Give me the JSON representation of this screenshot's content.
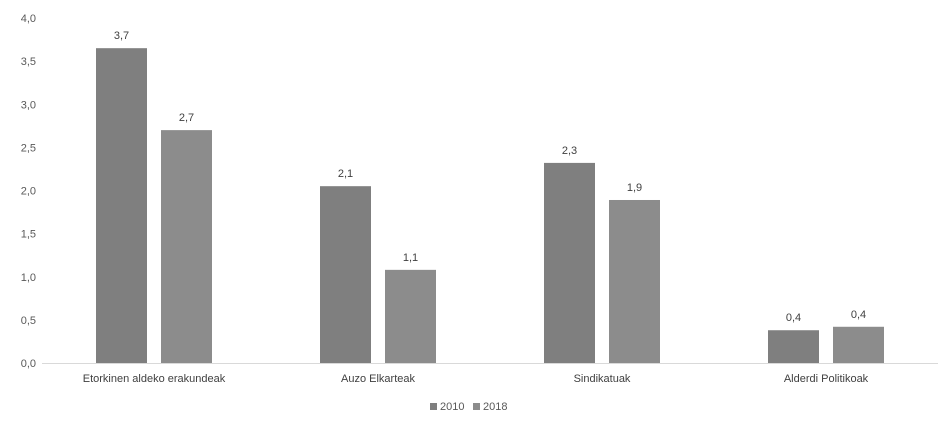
{
  "chart_data": {
    "type": "bar",
    "categories": [
      "Etorkinen aldeko erakundeak",
      "Auzo Elkarteak",
      "Sindikatuak",
      "Alderdi Politikoak"
    ],
    "series": [
      {
        "name": "2010",
        "values": [
          3.65,
          2.05,
          2.32,
          0.38
        ],
        "labels": [
          "3,7",
          "2,1",
          "2,3",
          "0,4"
        ],
        "color": "#7f7f7f"
      },
      {
        "name": "2018",
        "values": [
          2.7,
          1.08,
          1.89,
          0.42
        ],
        "labels": [
          "2,7",
          "1,1",
          "1,9",
          "0,4"
        ],
        "color": "#8c8c8c"
      }
    ],
    "ylim": [
      0,
      4
    ],
    "yticks": [
      {
        "value": 0,
        "label": "0,0"
      },
      {
        "value": 0.5,
        "label": "0,5"
      },
      {
        "value": 1,
        "label": "1,0"
      },
      {
        "value": 1.5,
        "label": "1,5"
      },
      {
        "value": 2,
        "label": "2,0"
      },
      {
        "value": 2.5,
        "label": "2,5"
      },
      {
        "value": 3,
        "label": "3,0"
      },
      {
        "value": 3.5,
        "label": "3,5"
      },
      {
        "value": 4,
        "label": "4,0"
      }
    ],
    "title": "",
    "xlabel": "",
    "ylabel": "",
    "grid": false,
    "legend": "bottom-center",
    "colors": {
      "axis": "#d9d9d9",
      "text": "#595959"
    }
  }
}
